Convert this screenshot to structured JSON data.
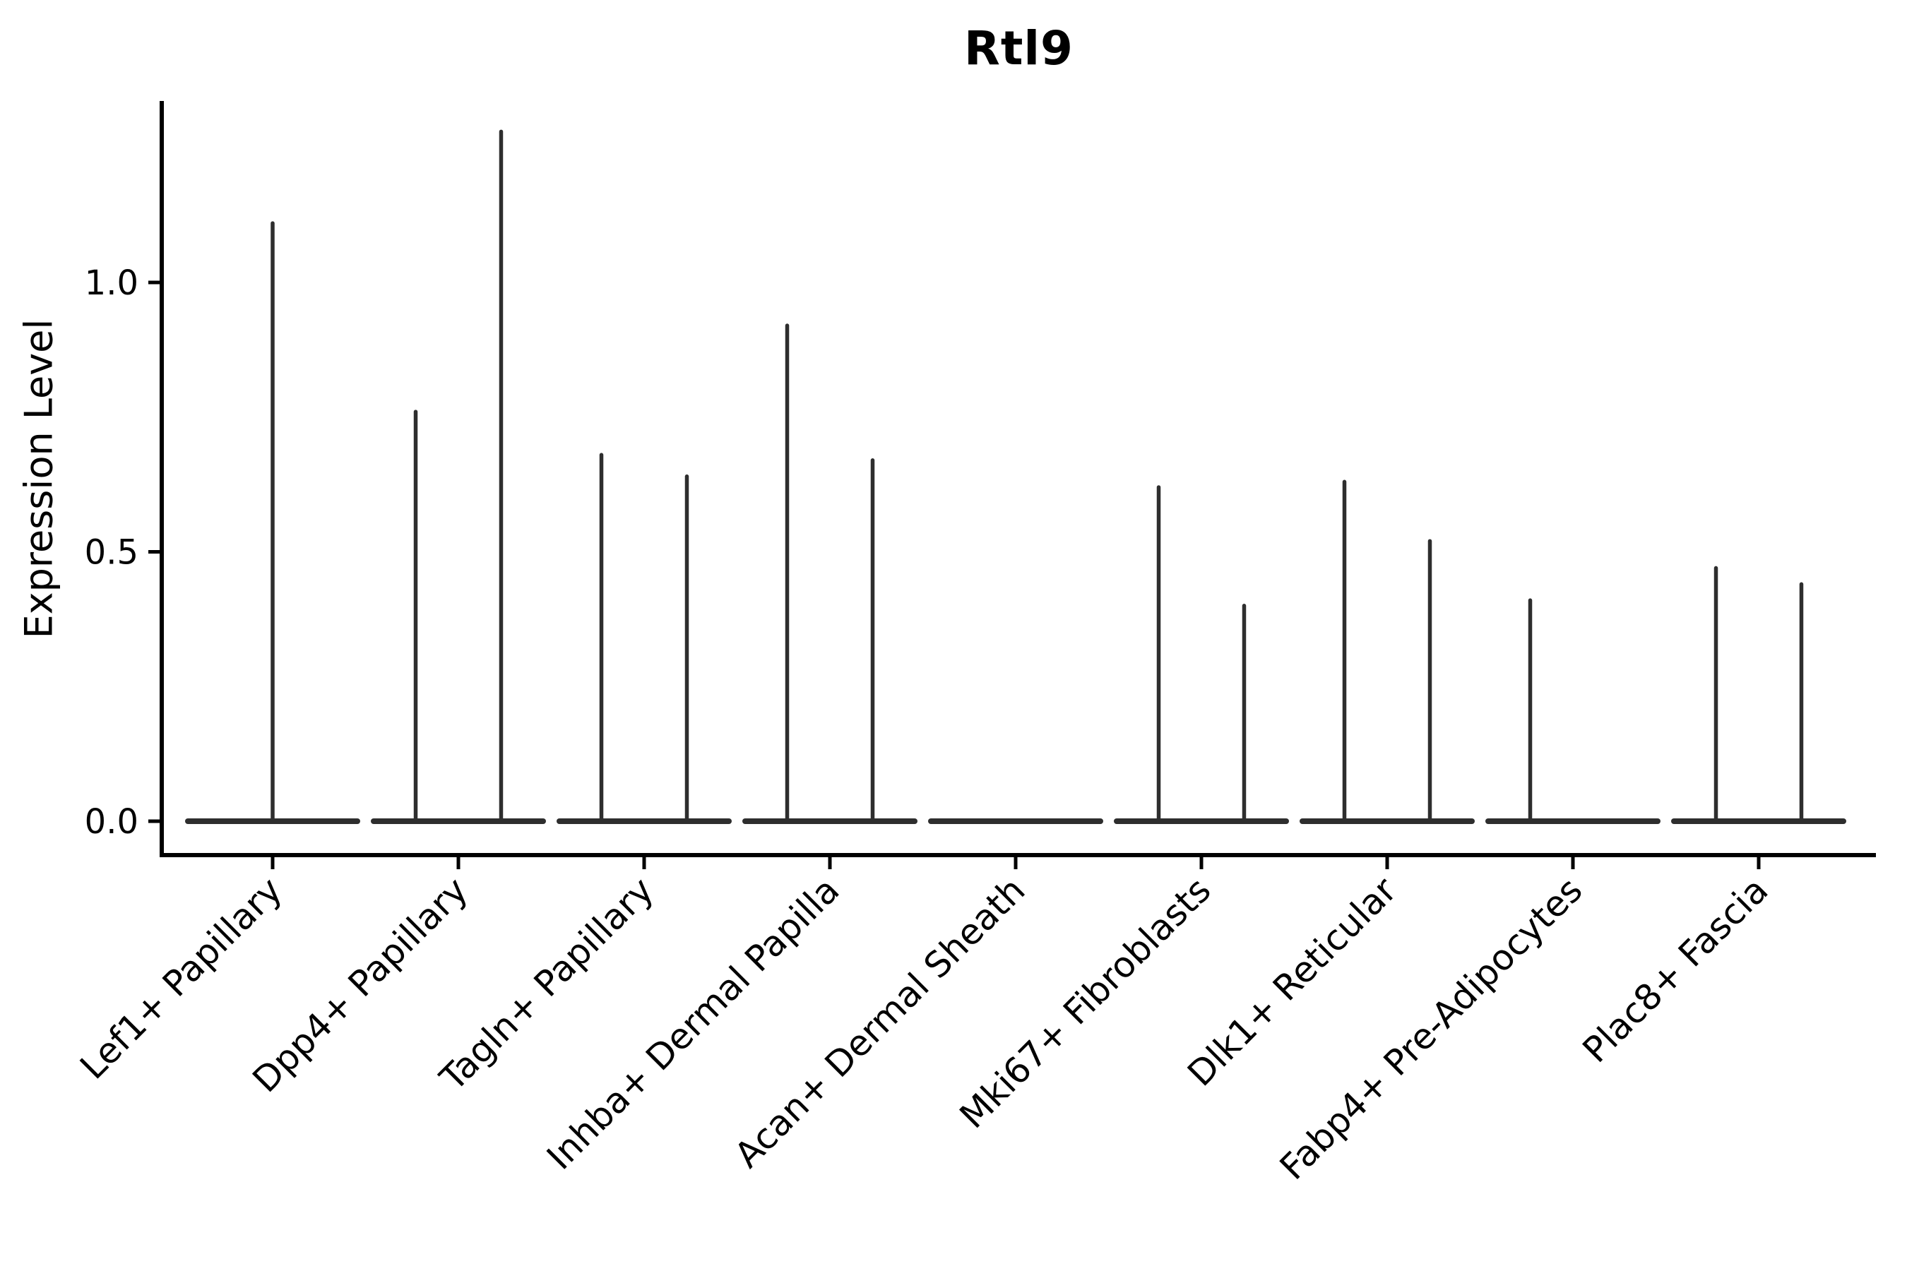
{
  "chart_data": {
    "type": "violin",
    "title": "Rtl9",
    "ylabel": "Expression Level",
    "xlabel": "",
    "yticks": [
      0.0,
      0.5,
      1.0
    ],
    "ytick_labels": [
      "0.0",
      "0.5",
      "1.0"
    ],
    "ylim": [
      0,
      1.34
    ],
    "grid": false,
    "legend": null,
    "categories": [
      "Lef1+ Papillary",
      "Dpp4+ Papillary",
      "Tagln+ Papillary",
      "Inhba+ Dermal Papilla",
      "Acan+ Dermal Sheath",
      "Mki67+ Fibroblasts",
      "Dlk1+ Reticular",
      "Fabp4+ Pre-Adipocytes",
      "Plac8+ Fascia"
    ],
    "violins": [
      {
        "category": "Lef1+ Papillary",
        "baseline_value": 0.0,
        "spikes": [
          {
            "offset": 0.0,
            "max": 1.11
          }
        ]
      },
      {
        "category": "Dpp4+ Papillary",
        "baseline_value": 0.0,
        "spikes": [
          {
            "offset": -0.23,
            "max": 0.76
          },
          {
            "offset": 0.23,
            "max": 1.28
          }
        ]
      },
      {
        "category": "Tagln+ Papillary",
        "baseline_value": 0.0,
        "spikes": [
          {
            "offset": -0.23,
            "max": 0.68
          },
          {
            "offset": 0.23,
            "max": 0.64
          }
        ]
      },
      {
        "category": "Inhba+ Dermal Papilla",
        "baseline_value": 0.0,
        "spikes": [
          {
            "offset": -0.23,
            "max": 0.92
          },
          {
            "offset": 0.23,
            "max": 0.67
          }
        ]
      },
      {
        "category": "Acan+ Dermal Sheath",
        "baseline_value": 0.0,
        "spikes": []
      },
      {
        "category": "Mki67+ Fibroblasts",
        "baseline_value": 0.0,
        "spikes": [
          {
            "offset": -0.23,
            "max": 0.62
          },
          {
            "offset": 0.23,
            "max": 0.4
          }
        ]
      },
      {
        "category": "Dlk1+ Reticular",
        "baseline_value": 0.0,
        "spikes": [
          {
            "offset": -0.23,
            "max": 0.63
          },
          {
            "offset": 0.23,
            "max": 0.52
          }
        ]
      },
      {
        "category": "Fabp4+ Pre-Adipocytes",
        "baseline_value": 0.0,
        "spikes": [
          {
            "offset": -0.23,
            "max": 0.41
          }
        ]
      },
      {
        "category": "Plac8+ Fascia",
        "baseline_value": 0.0,
        "spikes": [
          {
            "offset": -0.23,
            "max": 0.47
          },
          {
            "offset": 0.23,
            "max": 0.44
          }
        ]
      }
    ],
    "colors": {
      "line": "#2e2e2e",
      "axis": "#000000",
      "text": "#000000",
      "background": "#ffffff"
    }
  }
}
